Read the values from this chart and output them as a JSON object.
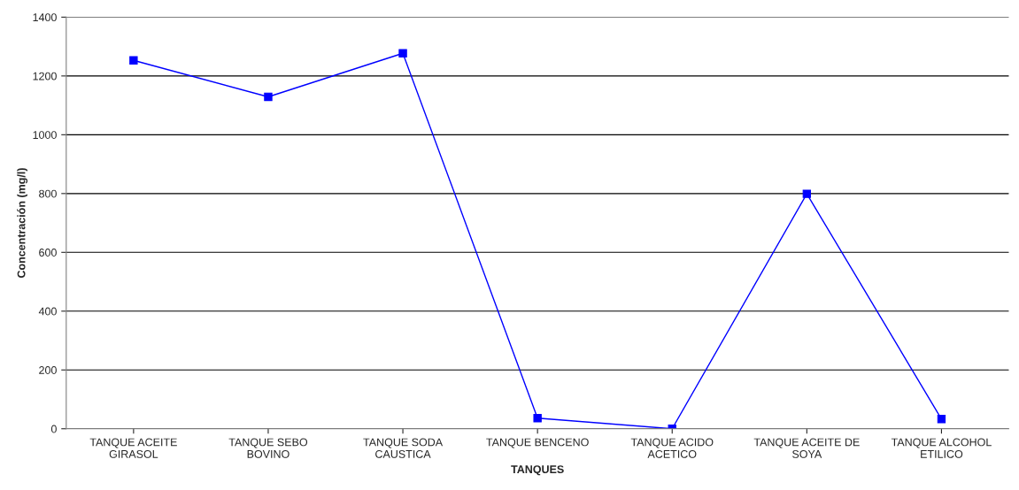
{
  "chart_data": {
    "type": "line",
    "xlabel": "TANQUES",
    "ylabel": "Concentración (mg/l)",
    "categories": [
      "TANQUE ACEITE\nGIRASOL",
      "TANQUE SEBO\nBOVINO",
      "TANQUE SODA\nCAUSTICA",
      "TANQUE BENCENO",
      "TANQUE ACIDO\nACETICO",
      "TANQUE ACEITE DE\nSOYA",
      "TANQUE ALCOHOL\nETILICO"
    ],
    "series": [
      {
        "color": "#0000ff",
        "values": [
          1253,
          1129,
          1277,
          36,
          0,
          799,
          33
        ]
      }
    ],
    "ylim": [
      0,
      1400
    ],
    "yticks": [
      0,
      200,
      400,
      600,
      800,
      1000,
      1200,
      1400
    ],
    "grid": "y",
    "marker": "square",
    "line_style": "solid"
  }
}
